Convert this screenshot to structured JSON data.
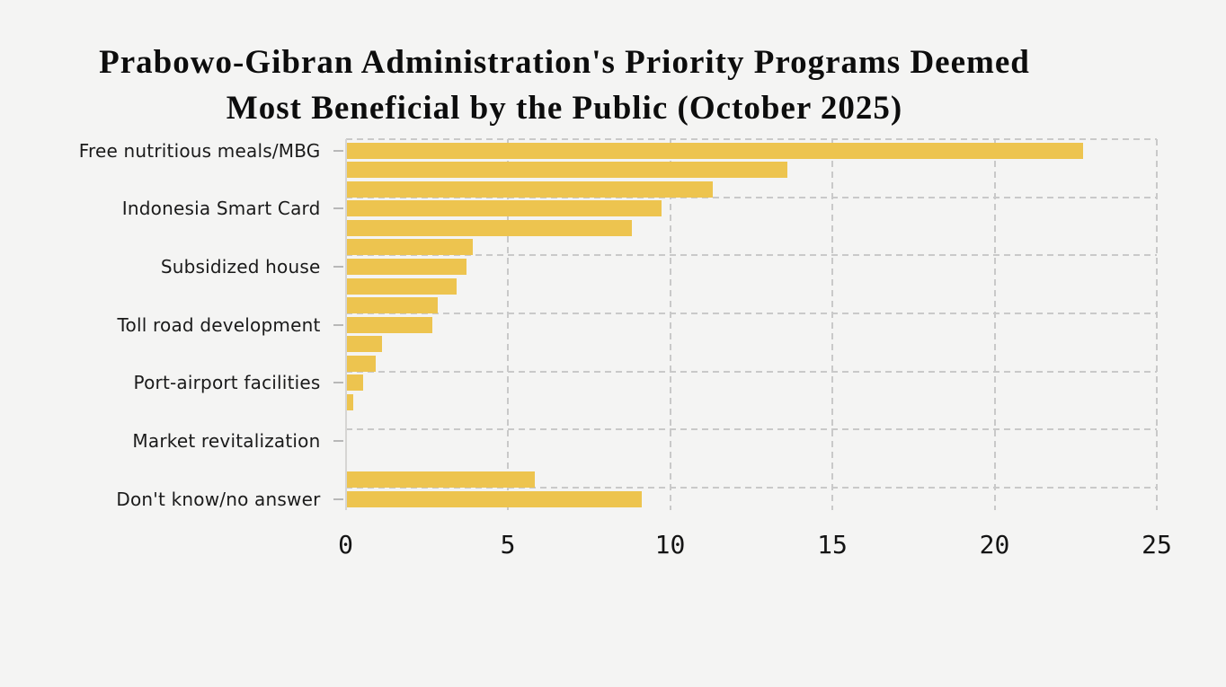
{
  "chart_data": {
    "type": "bar",
    "orientation": "horizontal",
    "title": "Prabowo-Gibran Administration's Priority Programs Deemed Most Beneficial by the Public (October 2025)",
    "title_lines": {
      "0": "Prabowo-Gibran Administration's Priority Programs Deemed",
      "1": "Most Beneficial by the Public (October 2025)"
    },
    "categories": [
      "Free nutritious meals/MBG",
      "",
      "",
      "Indonesia Smart Card",
      "",
      "",
      "Subsidized house",
      "",
      "",
      "Toll road development",
      "",
      "",
      "Port-airport facilities",
      "",
      "",
      "Market revitalization",
      "",
      "",
      "Don't know/no answer"
    ],
    "values": [
      22.7,
      13.6,
      11.3,
      9.7,
      8.8,
      3.9,
      3.7,
      3.4,
      2.8,
      2.65,
      1.1,
      0.9,
      0.5,
      0.2,
      0,
      0,
      0,
      5.8,
      9.1
    ],
    "labeled_row_indices": [
      0,
      3,
      6,
      9,
      12,
      15,
      18
    ],
    "xlabel": "",
    "ylabel": "",
    "xlim": [
      0,
      25
    ],
    "x_ticks": [
      0,
      5,
      10,
      15,
      20,
      25
    ],
    "x_tick_labels": [
      "0",
      "5",
      "10",
      "15",
      "20",
      "25"
    ],
    "grid": "dashed",
    "legend": "none",
    "colors": {
      "bar": "#edc44f",
      "background": "#f4f4f3",
      "grid": "#c9c9c9",
      "axis_spine": "#d6d5d3",
      "tick_mark": "#b8b8b8",
      "title_text": "#0d0d0d",
      "label_text": "#1a1a1a"
    }
  }
}
